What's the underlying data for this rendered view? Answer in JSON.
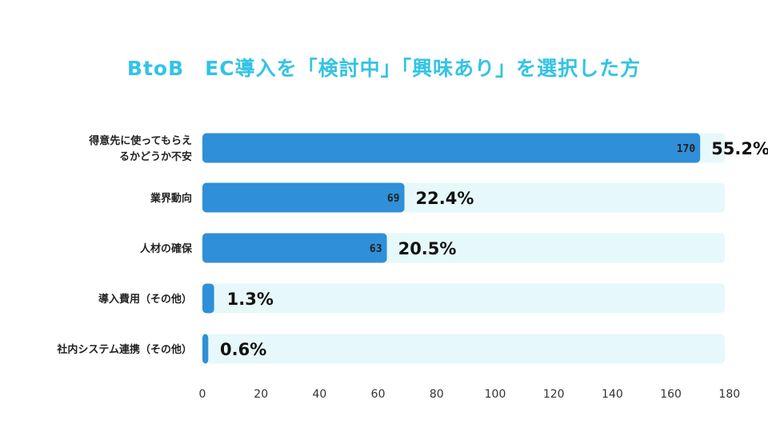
{
  "chart_data": {
    "type": "bar",
    "orientation": "horizontal",
    "title": "BtoB　EC導入を「検討中」「興味あり」を選択した方",
    "categories": [
      [
        "得意先に使ってもらえ",
        "るかどうか不安"
      ],
      [
        "業界動向"
      ],
      [
        "人材の確保"
      ],
      [
        "導入費用（その他）"
      ],
      [
        "社内システム連携（その他）"
      ]
    ],
    "values": [
      170,
      69,
      63,
      4,
      2
    ],
    "value_labels": [
      "170",
      "69",
      "63",
      "",
      ""
    ],
    "percent_labels": [
      "55.2%",
      "22.4%",
      "20.5%",
      "1.3%",
      "0.6%"
    ],
    "xlim": [
      0,
      184
    ],
    "ticks": [
      0,
      20,
      40,
      60,
      80,
      100,
      120,
      140,
      160,
      180
    ],
    "tick_labels": [
      "0",
      "20",
      "40",
      "60",
      "80",
      "100",
      "120",
      "140",
      "160",
      "180"
    ],
    "grid": false,
    "legend": "none",
    "colors": {
      "bar": "#2f8fd8",
      "track": "#e6f8f9",
      "title": "#33c3e6"
    }
  }
}
